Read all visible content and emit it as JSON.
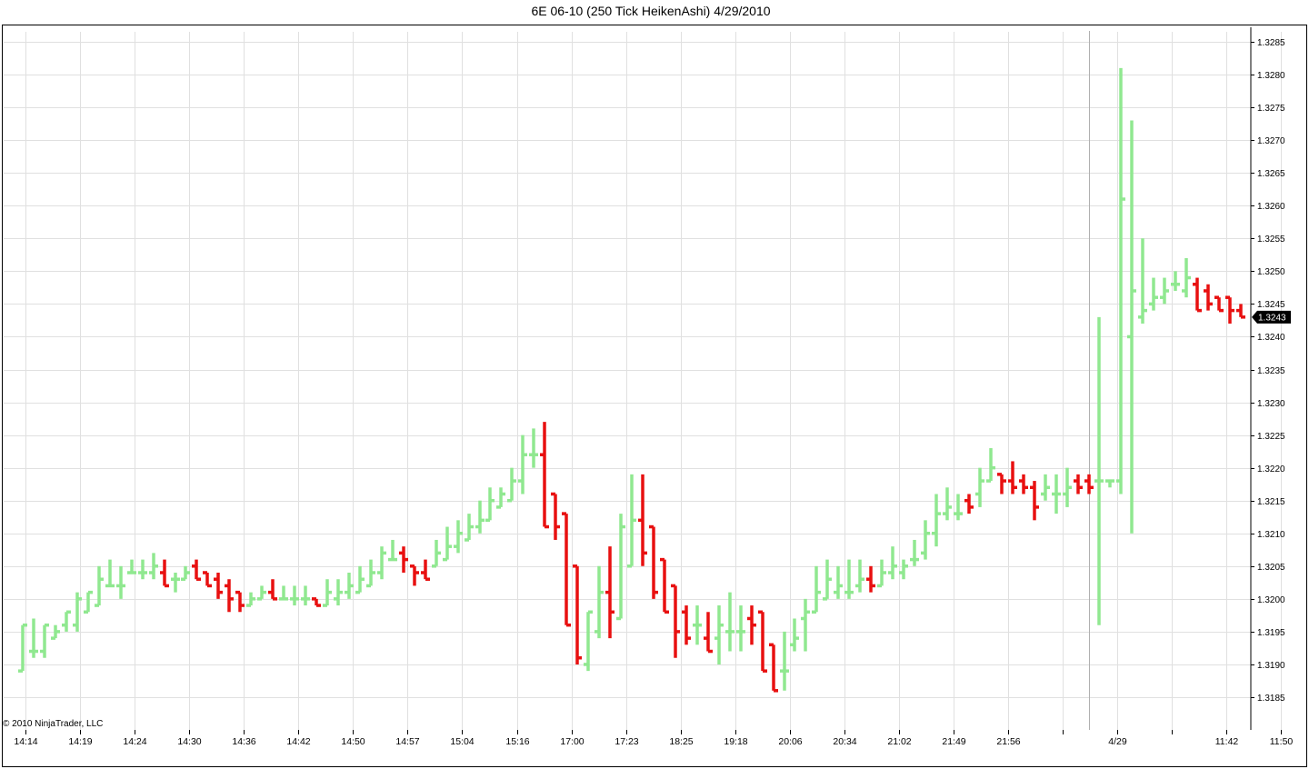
{
  "chart_data": {
    "type": "ohlc",
    "title": "6E 06-10 (250 Tick HeikenAshi)  4/29/2010",
    "copyright": "© 2010 NinjaTrader, LLC",
    "ylim": [
      1.318,
      1.3286
    ],
    "y_ticks": [
      "1.3285",
      "1.3280",
      "1.3275",
      "1.3270",
      "1.3265",
      "1.3260",
      "1.3255",
      "1.3250",
      "1.3245",
      "1.3240",
      "1.3235",
      "1.3230",
      "1.3225",
      "1.3220",
      "1.3215",
      "1.3210",
      "1.3205",
      "1.3200",
      "1.3195",
      "1.3190",
      "1.3185"
    ],
    "x_ticks": [
      "14:14",
      "14:19",
      "14:24",
      "14:30",
      "14:36",
      "14:42",
      "14:50",
      "14:57",
      "15:04",
      "15:16",
      "17:00",
      "17:23",
      "18:25",
      "19:18",
      "20:06",
      "20:34",
      "21:02",
      "21:49",
      "21:56",
      "",
      "4/29",
      "",
      "11:42",
      "11:50"
    ],
    "last_price": "1.3243",
    "colors": {
      "up": "#90e890",
      "down": "#e81010",
      "grid": "#e0e0e0",
      "separator": "#b0b0b0"
    },
    "bars": [
      [
        1.3189,
        1.3196,
        1.3189,
        1.3196
      ],
      [
        1.3192,
        1.3197,
        1.3191,
        1.3192
      ],
      [
        1.3192,
        1.3196,
        1.3191,
        1.3196
      ],
      [
        1.3194,
        1.3196,
        1.3194,
        1.3195
      ],
      [
        1.3196,
        1.3198,
        1.3195,
        1.3198
      ],
      [
        1.3196,
        1.3201,
        1.3195,
        1.32
      ],
      [
        1.3198,
        1.3201,
        1.3198,
        1.3201
      ],
      [
        1.3199,
        1.3205,
        1.3199,
        1.3203
      ],
      [
        1.3202,
        1.3206,
        1.3202,
        1.3202
      ],
      [
        1.3202,
        1.3205,
        1.32,
        1.3202
      ],
      [
        1.3204,
        1.3206,
        1.3204,
        1.3204
      ],
      [
        1.3204,
        1.3206,
        1.3203,
        1.3204
      ],
      [
        1.3204,
        1.3207,
        1.3203,
        1.3205
      ],
      [
        1.3204,
        1.3206,
        1.3202,
        1.3202
      ],
      [
        1.3203,
        1.3204,
        1.3201,
        1.3203
      ],
      [
        1.3203,
        1.3205,
        1.3203,
        1.3204
      ],
      [
        1.3205,
        1.3206,
        1.3203,
        1.3203
      ],
      [
        1.3204,
        1.3204,
        1.3202,
        1.3202
      ],
      [
        1.3203,
        1.3204,
        1.32,
        1.3201
      ],
      [
        1.3202,
        1.3203,
        1.3198,
        1.32
      ],
      [
        1.3201,
        1.3201,
        1.3198,
        1.3199
      ],
      [
        1.3199,
        1.3201,
        1.3199,
        1.32
      ],
      [
        1.32,
        1.3202,
        1.32,
        1.3201
      ],
      [
        1.3201,
        1.3203,
        1.32,
        1.32
      ],
      [
        1.32,
        1.3202,
        1.32,
        1.32
      ],
      [
        1.32,
        1.3202,
        1.3199,
        1.32
      ],
      [
        1.32,
        1.3202,
        1.3199,
        1.32
      ],
      [
        1.32,
        1.32,
        1.3199,
        1.3199
      ],
      [
        1.3199,
        1.3203,
        1.3199,
        1.3201
      ],
      [
        1.32,
        1.3203,
        1.3199,
        1.3201
      ],
      [
        1.3201,
        1.3204,
        1.32,
        1.3202
      ],
      [
        1.3201,
        1.3205,
        1.3201,
        1.3203
      ],
      [
        1.3202,
        1.3206,
        1.3202,
        1.3204
      ],
      [
        1.3204,
        1.3208,
        1.3203,
        1.3207
      ],
      [
        1.3206,
        1.3209,
        1.3206,
        1.3206
      ],
      [
        1.3207,
        1.3208,
        1.3204,
        1.3206
      ],
      [
        1.3205,
        1.3205,
        1.3202,
        1.3204
      ],
      [
        1.3204,
        1.3206,
        1.3203,
        1.3203
      ],
      [
        1.3205,
        1.3209,
        1.3205,
        1.3207
      ],
      [
        1.3206,
        1.3211,
        1.3206,
        1.3208
      ],
      [
        1.3208,
        1.3212,
        1.3207,
        1.321
      ],
      [
        1.3209,
        1.3213,
        1.3209,
        1.3211
      ],
      [
        1.3211,
        1.3215,
        1.321,
        1.3212
      ],
      [
        1.3212,
        1.3217,
        1.3212,
        1.3215
      ],
      [
        1.3214,
        1.3217,
        1.3214,
        1.3216
      ],
      [
        1.3215,
        1.322,
        1.3215,
        1.3218
      ],
      [
        1.3218,
        1.3225,
        1.3216,
        1.3222
      ],
      [
        1.3222,
        1.3226,
        1.322,
        1.3222
      ],
      [
        1.3222,
        1.3227,
        1.3211,
        1.3211
      ],
      [
        1.3216,
        1.3216,
        1.3209,
        1.3211
      ],
      [
        1.3213,
        1.3213,
        1.3196,
        1.3196
      ],
      [
        1.3205,
        1.3205,
        1.319,
        1.3191
      ],
      [
        1.319,
        1.3198,
        1.3189,
        1.3198
      ],
      [
        1.3195,
        1.3205,
        1.3194,
        1.3201
      ],
      [
        1.3201,
        1.3208,
        1.3194,
        1.3198
      ],
      [
        1.3197,
        1.3213,
        1.3197,
        1.3211
      ],
      [
        1.3205,
        1.3219,
        1.3205,
        1.3212
      ],
      [
        1.3212,
        1.3219,
        1.3205,
        1.3207
      ],
      [
        1.3211,
        1.3211,
        1.32,
        1.3201
      ],
      [
        1.3206,
        1.3206,
        1.3198,
        1.3198
      ],
      [
        1.3202,
        1.3202,
        1.3191,
        1.3195
      ],
      [
        1.3198,
        1.3199,
        1.3193,
        1.3194
      ],
      [
        1.3196,
        1.3199,
        1.3193,
        1.3196
      ],
      [
        1.3194,
        1.3198,
        1.3192,
        1.3192
      ],
      [
        1.3194,
        1.3199,
        1.319,
        1.3196
      ],
      [
        1.3195,
        1.3201,
        1.3192,
        1.3195
      ],
      [
        1.3195,
        1.3199,
        1.3192,
        1.3195
      ],
      [
        1.3197,
        1.3199,
        1.3193,
        1.3196
      ],
      [
        1.3198,
        1.3198,
        1.3189,
        1.3189
      ],
      [
        1.3193,
        1.3193,
        1.3186,
        1.3186
      ],
      [
        1.3189,
        1.3195,
        1.3186,
        1.3189
      ],
      [
        1.3193,
        1.3197,
        1.3192,
        1.3194
      ],
      [
        1.3197,
        1.32,
        1.3192,
        1.3198
      ],
      [
        1.3198,
        1.3205,
        1.3198,
        1.3201
      ],
      [
        1.32,
        1.3206,
        1.32,
        1.3203
      ],
      [
        1.3201,
        1.3205,
        1.32,
        1.3202
      ],
      [
        1.3201,
        1.3206,
        1.32,
        1.3201
      ],
      [
        1.3202,
        1.3206,
        1.3201,
        1.3203
      ],
      [
        1.3203,
        1.3205,
        1.3201,
        1.3202
      ],
      [
        1.3202,
        1.3206,
        1.3202,
        1.3204
      ],
      [
        1.3204,
        1.3208,
        1.3203,
        1.3205
      ],
      [
        1.3204,
        1.3206,
        1.3203,
        1.3205
      ],
      [
        1.3206,
        1.3209,
        1.3205,
        1.3206
      ],
      [
        1.3207,
        1.3212,
        1.3206,
        1.321
      ],
      [
        1.321,
        1.3216,
        1.3208,
        1.3213
      ],
      [
        1.3213,
        1.3217,
        1.3212,
        1.3214
      ],
      [
        1.3213,
        1.3216,
        1.3212,
        1.3213
      ],
      [
        1.3215,
        1.3216,
        1.3213,
        1.3214
      ],
      [
        1.3216,
        1.322,
        1.3214,
        1.3218
      ],
      [
        1.3218,
        1.3223,
        1.3218,
        1.322
      ],
      [
        1.3219,
        1.3219,
        1.3216,
        1.3218
      ],
      [
        1.3218,
        1.3221,
        1.3216,
        1.3217
      ],
      [
        1.3218,
        1.3219,
        1.3216,
        1.3217
      ],
      [
        1.3217,
        1.3218,
        1.3212,
        1.3214
      ],
      [
        1.3216,
        1.3219,
        1.3215,
        1.3217
      ],
      [
        1.3216,
        1.3219,
        1.3213,
        1.3216
      ],
      [
        1.3216,
        1.322,
        1.3214,
        1.3217
      ],
      [
        1.3218,
        1.3219,
        1.3216,
        1.3217
      ],
      [
        1.3218,
        1.3219,
        1.3216,
        1.3217
      ],
      [
        1.3218,
        1.3243,
        1.3196,
        1.3218
      ],
      [
        1.3218,
        1.3218,
        1.3217,
        1.3218
      ],
      [
        1.3218,
        1.3281,
        1.3216,
        1.3261
      ],
      [
        1.324,
        1.3273,
        1.321,
        1.3247
      ],
      [
        1.3243,
        1.3255,
        1.3242,
        1.3244
      ],
      [
        1.3245,
        1.3249,
        1.3244,
        1.3246
      ],
      [
        1.3246,
        1.3249,
        1.3245,
        1.3247
      ],
      [
        1.3248,
        1.325,
        1.3247,
        1.3248
      ],
      [
        1.3247,
        1.3252,
        1.3246,
        1.3249
      ],
      [
        1.3248,
        1.3249,
        1.3244,
        1.3244
      ],
      [
        1.3247,
        1.3248,
        1.3244,
        1.3245
      ],
      [
        1.3246,
        1.3246,
        1.3244,
        1.3244
      ],
      [
        1.3246,
        1.3246,
        1.3242,
        1.3244
      ],
      [
        1.3244,
        1.3245,
        1.3243,
        1.3243
      ]
    ]
  }
}
